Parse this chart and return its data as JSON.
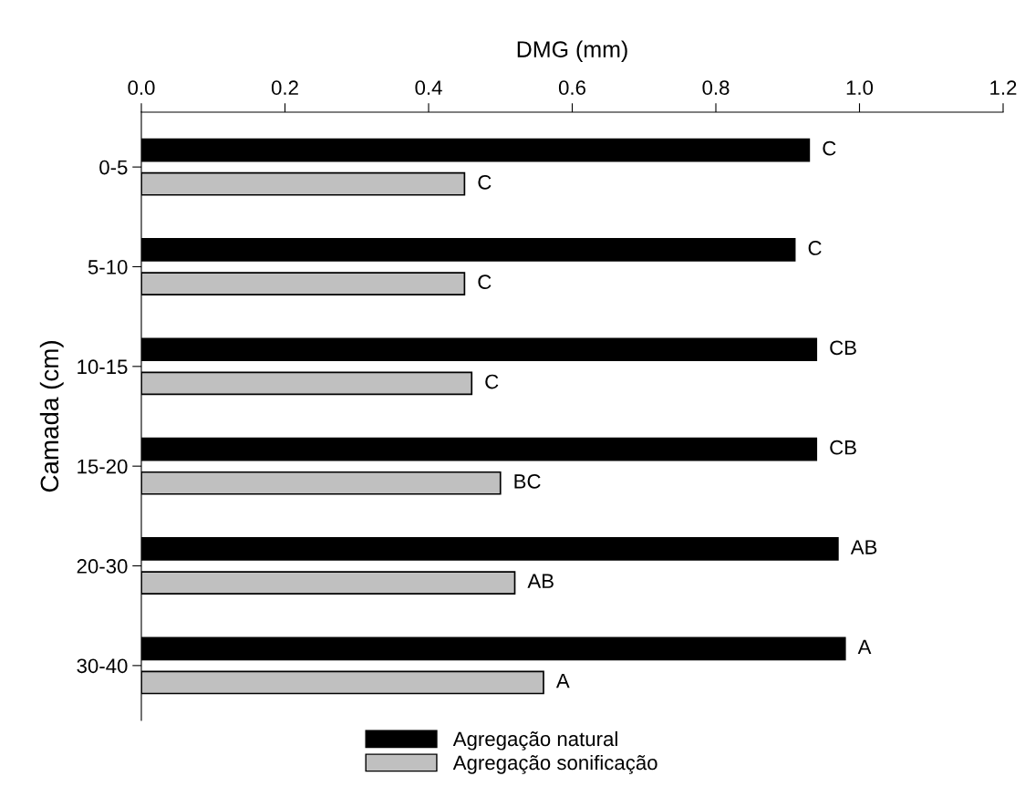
{
  "chart_data": {
    "type": "bar",
    "orientation": "horizontal",
    "xlabel": "DMG (mm)",
    "ylabel": "Camada (cm)",
    "categories": [
      "0-5",
      "5-10",
      "10-15",
      "15-20",
      "20-30",
      "30-40"
    ],
    "series": [
      {
        "name": "Agregação natural",
        "color": "#000000",
        "values": [
          0.93,
          0.91,
          0.94,
          0.94,
          0.97,
          0.98
        ],
        "value_labels": [
          "C",
          "C",
          "CB",
          "CB",
          "AB",
          "A"
        ]
      },
      {
        "name": "Agregação sonificação",
        "color": "#c0c0c0",
        "values": [
          0.45,
          0.45,
          0.46,
          0.5,
          0.52,
          0.56
        ],
        "value_labels": [
          "C",
          "C",
          "C",
          "BC",
          "AB",
          "A"
        ]
      }
    ],
    "xlim": [
      0,
      1.2
    ],
    "xticks": [
      {
        "value": 0,
        "label": "0.0"
      },
      {
        "value": 0.2,
        "label": "0.2"
      },
      {
        "value": 0.4,
        "label": "0.4"
      },
      {
        "value": 0.6,
        "label": "0.6"
      },
      {
        "value": 0.8,
        "label": "0.8"
      },
      {
        "value": 1.0,
        "label": "1.0"
      },
      {
        "value": 1.2,
        "label": "1.2"
      }
    ],
    "grid": false,
    "legend": "bottom"
  }
}
